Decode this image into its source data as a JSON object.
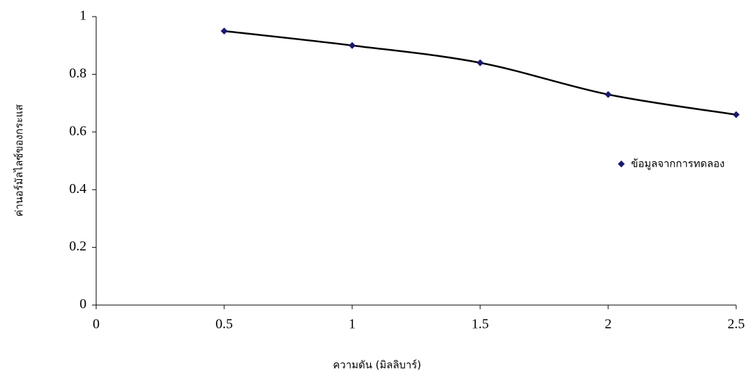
{
  "chart_data": {
    "type": "scatter",
    "x_label": "ความดัน (มิลลิบาร์)",
    "y_label": "ค่านอร์มัลไลซ์ของกระแส",
    "x": [
      0.5,
      1,
      1.5,
      2,
      2.5
    ],
    "series": [
      {
        "name": "ข้อมูลจากการทดลอง",
        "color": "#1a1a6e",
        "values": [
          0.95,
          0.9,
          0.84,
          0.73,
          0.66
        ]
      }
    ],
    "smooth_line": true,
    "line_color": "#000000",
    "xlim": [
      0,
      2.5
    ],
    "ylim": [
      0,
      1
    ],
    "xticks": [
      0,
      0.5,
      1,
      1.5,
      2,
      2.5
    ],
    "yticks": [
      0,
      0.2,
      0.4,
      0.6,
      0.8,
      1
    ],
    "legend": "right"
  }
}
